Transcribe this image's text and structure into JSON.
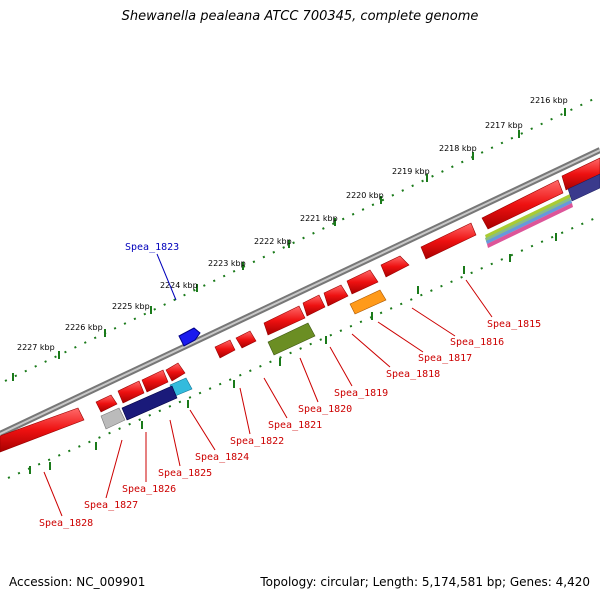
{
  "title": "Shewanella pealeana ATCC 700345, complete genome",
  "footer": {
    "accession": "Accession: NC_009901",
    "summary": "Topology: circular; Length: 5,174,581 bp; Genes: 4,420"
  },
  "ruler_labels": [
    "2216 kbp",
    "2217 kbp",
    "2218 kbp",
    "2219 kbp",
    "2220 kbp",
    "2221 kbp",
    "2222 kbp",
    "2223 kbp",
    "2224 kbp",
    "2225 kbp",
    "2226 kbp",
    "2227 kbp"
  ],
  "genes": [
    "Spea_1815",
    "Spea_1816",
    "Spea_1817",
    "Spea_1818",
    "Spea_1819",
    "Spea_1820",
    "Spea_1821",
    "Spea_1822",
    "Spea_1823",
    "Spea_1824",
    "Spea_1825",
    "Spea_1826",
    "Spea_1827",
    "Spea_1828"
  ],
  "colors": {
    "cds": "#ee1111",
    "highlight_gene": "#1a1aee",
    "outer_label": "#0000bb",
    "inner_label": "#cc0000",
    "ruler": "#1a7a1a",
    "backbone": "#888888"
  }
}
